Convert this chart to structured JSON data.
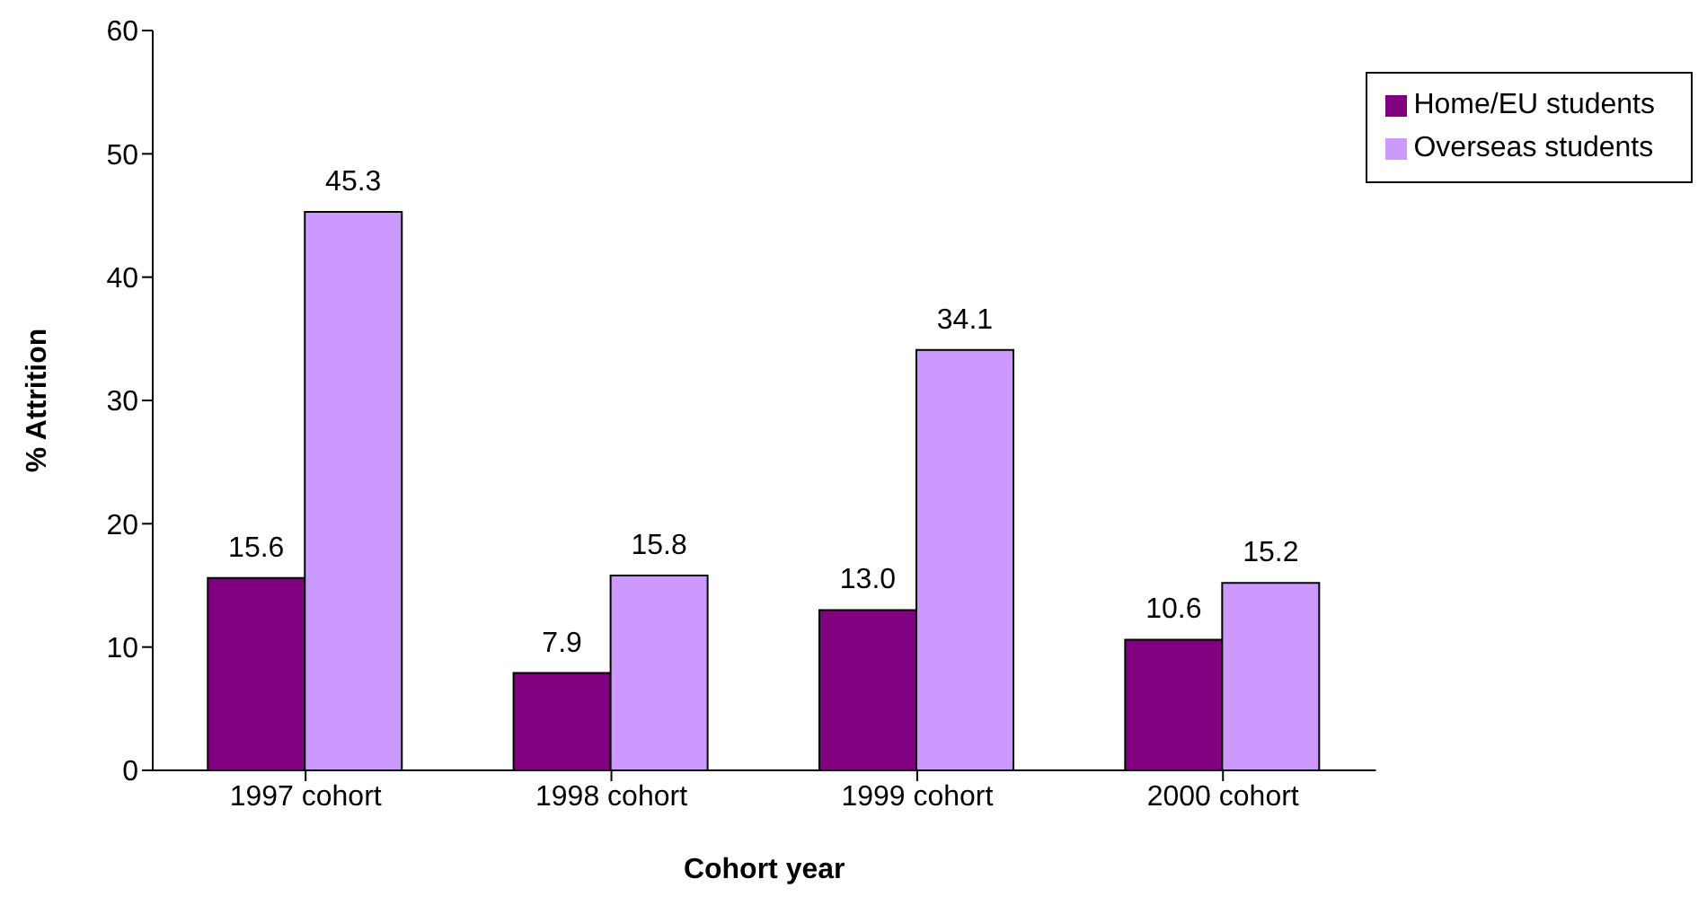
{
  "chart_data": {
    "type": "bar",
    "xlabel": "Cohort year",
    "ylabel": "% Attrition",
    "categories": [
      "1997 cohort",
      "1998 cohort",
      "1999 cohort",
      "2000 cohort"
    ],
    "series": [
      {
        "name": "Home/EU students",
        "color": "#800080",
        "values": [
          15.6,
          7.9,
          13.0,
          10.6
        ],
        "value_labels": [
          "15.6",
          "7.9",
          "13.0",
          "10.6"
        ]
      },
      {
        "name": "Overseas students",
        "color": "#cc99ff",
        "values": [
          45.3,
          15.8,
          34.1,
          15.2
        ],
        "value_labels": [
          "45.3",
          "15.8",
          "34.1",
          "15.2"
        ]
      }
    ],
    "ylim": [
      0,
      60
    ],
    "yticks": [
      0,
      10,
      20,
      30,
      40,
      50,
      60
    ],
    "grid": false,
    "legend": "top right"
  }
}
